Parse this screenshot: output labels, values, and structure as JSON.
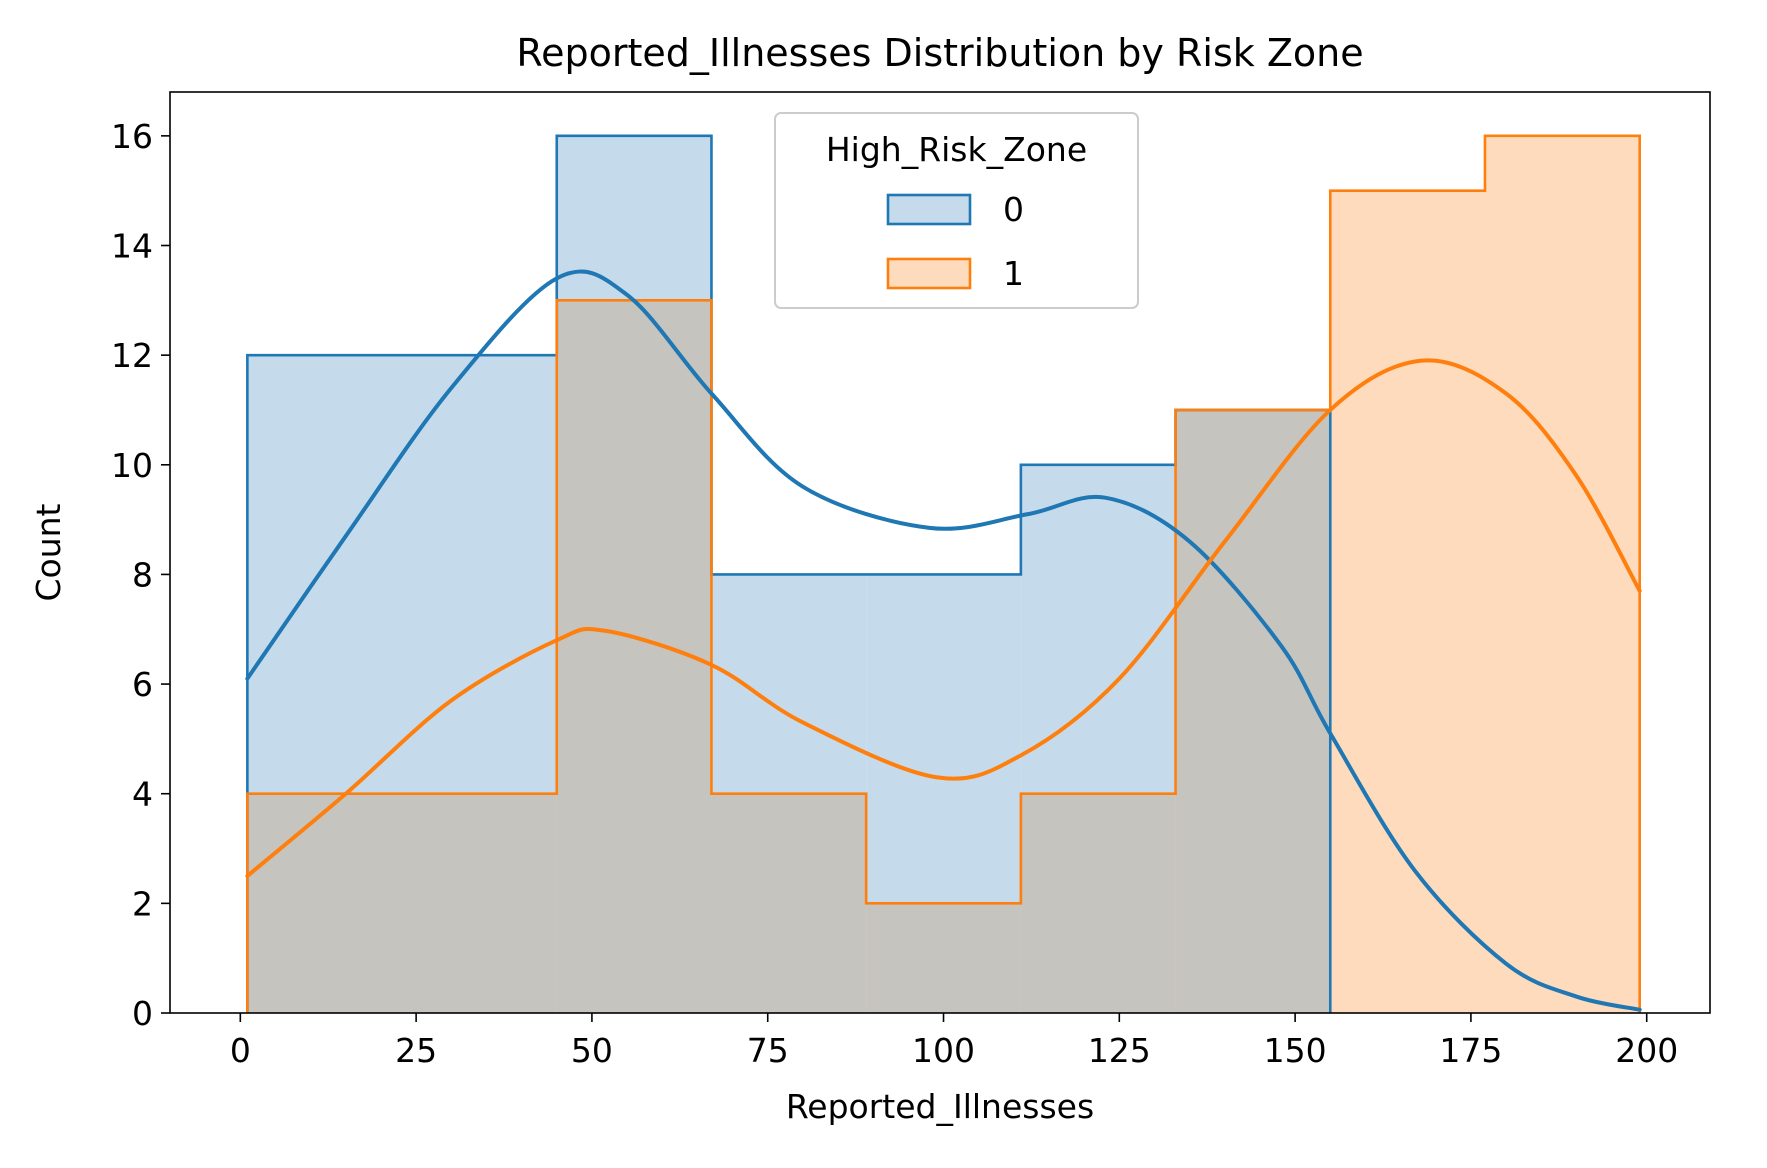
{
  "chart_data": {
    "type": "histogram",
    "title": "Reported_Illnesses Distribution by Risk Zone",
    "xlabel": "Reported_Illnesses",
    "ylabel": "Count",
    "xlim": [
      -10,
      209
    ],
    "ylim": [
      0,
      16.8
    ],
    "xticks": [
      0,
      25,
      50,
      75,
      100,
      125,
      150,
      175,
      200
    ],
    "yticks": [
      0,
      2,
      4,
      6,
      8,
      10,
      12,
      14,
      16
    ],
    "grid": false,
    "bin_edges": [
      1,
      45,
      67,
      89,
      111,
      133,
      155,
      177,
      199
    ],
    "legend": {
      "title": "High_Risk_Zone",
      "placement": "top-center"
    },
    "series": [
      {
        "name": "0",
        "color": "#1f77b4",
        "fill": "#c5dbeb",
        "counts": [
          12,
          16,
          8,
          8,
          10,
          11,
          0,
          0
        ],
        "kde": [
          [
            1,
            6.1
          ],
          [
            15,
            8.7
          ],
          [
            30,
            11.4
          ],
          [
            45,
            13.4
          ],
          [
            55,
            13.1
          ],
          [
            67,
            11.3
          ],
          [
            80,
            9.6
          ],
          [
            98,
            8.85
          ],
          [
            112,
            9.1
          ],
          [
            123,
            9.4
          ],
          [
            135,
            8.6
          ],
          [
            148,
            6.7
          ],
          [
            155,
            5.1
          ],
          [
            167,
            2.6
          ],
          [
            180,
            0.9
          ],
          [
            190,
            0.3
          ],
          [
            199,
            0.06
          ]
        ]
      },
      {
        "name": "1",
        "color": "#ff7f0e",
        "fill": "#fddbbc",
        "counts": [
          4,
          13,
          4,
          2,
          4,
          11,
          15,
          16
        ],
        "kde": [
          [
            1,
            2.5
          ],
          [
            15,
            4.0
          ],
          [
            30,
            5.7
          ],
          [
            45,
            6.8
          ],
          [
            52,
            6.97
          ],
          [
            67,
            6.35
          ],
          [
            80,
            5.3
          ],
          [
            99,
            4.3
          ],
          [
            111,
            4.7
          ],
          [
            125,
            6.1
          ],
          [
            140,
            8.6
          ],
          [
            155,
            11.0
          ],
          [
            168,
            11.9
          ],
          [
            180,
            11.3
          ],
          [
            190,
            9.8
          ],
          [
            199,
            7.7
          ]
        ]
      }
    ],
    "overlap_fill": "#c5c4bf"
  }
}
